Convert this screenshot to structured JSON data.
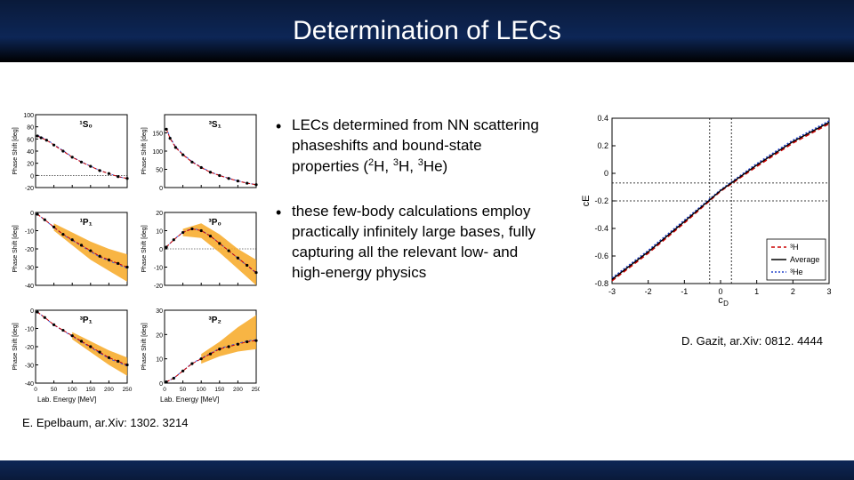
{
  "title": "Determination of LECs",
  "bullets": {
    "b1": {
      "pre": "LECs determined from NN scattering phaseshifts and bound-state properties (",
      "sup1": "2",
      "n1": "H, ",
      "sup2": "3",
      "n2": "H, ",
      "sup3": "3",
      "n3": "He)"
    },
    "b2": "these few-body calculations employ practically infinitely large bases, fully capturing all the relevant low- and high-energy physics"
  },
  "left_panels": {
    "ylabel": "Phase Shift [deg]",
    "xlabel": "Lab. Energy [MeV]",
    "xticks": [
      0,
      50,
      100,
      150,
      200,
      250
    ],
    "panels": [
      {
        "label": "¹S₀",
        "ylim": [
          -20,
          100
        ],
        "yticks": [
          -20,
          0,
          20,
          40,
          60,
          80,
          100
        ],
        "data": [
          [
            5,
            65
          ],
          [
            15,
            62
          ],
          [
            30,
            58
          ],
          [
            50,
            50
          ],
          [
            75,
            40
          ],
          [
            100,
            30
          ],
          [
            125,
            22
          ],
          [
            150,
            15
          ],
          [
            175,
            8
          ],
          [
            200,
            3
          ],
          [
            225,
            -2
          ],
          [
            250,
            -5
          ]
        ],
        "band": null
      },
      {
        "label": "³S₁",
        "ylim": [
          0,
          200
        ],
        "yticks": [
          0,
          50,
          100,
          150
        ],
        "data": [
          [
            5,
            160
          ],
          [
            15,
            135
          ],
          [
            30,
            110
          ],
          [
            50,
            90
          ],
          [
            75,
            70
          ],
          [
            100,
            55
          ],
          [
            125,
            42
          ],
          [
            150,
            33
          ],
          [
            175,
            25
          ],
          [
            200,
            18
          ],
          [
            225,
            12
          ],
          [
            250,
            8
          ]
        ],
        "band": null
      },
      {
        "label": "¹P₁",
        "ylim": [
          -40,
          0
        ],
        "yticks": [
          -40,
          -30,
          -20,
          -10,
          0
        ],
        "data": [
          [
            5,
            -1
          ],
          [
            25,
            -4
          ],
          [
            50,
            -8
          ],
          [
            75,
            -12
          ],
          [
            100,
            -15
          ],
          [
            125,
            -18
          ],
          [
            150,
            -21
          ],
          [
            175,
            -24
          ],
          [
            200,
            -26
          ],
          [
            225,
            -28
          ],
          [
            250,
            -30
          ]
        ],
        "band": [
          [
            50,
            -6,
            -10
          ],
          [
            100,
            -11,
            -18
          ],
          [
            150,
            -16,
            -26
          ],
          [
            200,
            -20,
            -32
          ],
          [
            250,
            -23,
            -38
          ]
        ]
      },
      {
        "label": "³P₀",
        "ylim": [
          -20,
          20
        ],
        "yticks": [
          -20,
          -10,
          0,
          10,
          20
        ],
        "data": [
          [
            5,
            1
          ],
          [
            25,
            5
          ],
          [
            50,
            9
          ],
          [
            75,
            11
          ],
          [
            100,
            10
          ],
          [
            125,
            7
          ],
          [
            150,
            3
          ],
          [
            175,
            -1
          ],
          [
            200,
            -5
          ],
          [
            225,
            -9
          ],
          [
            250,
            -13
          ]
        ],
        "band": [
          [
            50,
            7,
            11
          ],
          [
            100,
            6,
            14
          ],
          [
            150,
            -2,
            8
          ],
          [
            200,
            -11,
            0
          ],
          [
            250,
            -20,
            -6
          ]
        ]
      },
      {
        "label": "³P₁",
        "ylim": [
          -40,
          0
        ],
        "yticks": [
          -40,
          -30,
          -20,
          -10,
          0
        ],
        "data": [
          [
            5,
            -1
          ],
          [
            25,
            -4
          ],
          [
            50,
            -8
          ],
          [
            75,
            -11
          ],
          [
            100,
            -14
          ],
          [
            125,
            -17
          ],
          [
            150,
            -20
          ],
          [
            175,
            -23
          ],
          [
            200,
            -26
          ],
          [
            225,
            -28
          ],
          [
            250,
            -30
          ]
        ],
        "band": [
          [
            100,
            -12,
            -16
          ],
          [
            150,
            -17,
            -23
          ],
          [
            200,
            -22,
            -30
          ],
          [
            250,
            -26,
            -36
          ]
        ]
      },
      {
        "label": "³P₂",
        "ylim": [
          0,
          30
        ],
        "yticks": [
          0,
          10,
          20,
          30
        ],
        "data": [
          [
            5,
            0.5
          ],
          [
            25,
            2
          ],
          [
            50,
            5
          ],
          [
            75,
            8
          ],
          [
            100,
            10
          ],
          [
            125,
            12
          ],
          [
            150,
            14
          ],
          [
            175,
            15
          ],
          [
            200,
            16
          ],
          [
            225,
            17
          ],
          [
            250,
            17.5
          ]
        ],
        "band": [
          [
            100,
            8,
            12
          ],
          [
            150,
            11,
            17
          ],
          [
            200,
            13,
            23
          ],
          [
            250,
            14,
            28
          ]
        ]
      }
    ],
    "band_color": "#f7a823",
    "line_color": "#cc0000",
    "dash_color": "#3355dd",
    "point_color": "#000000",
    "axis_color": "#000000"
  },
  "right_chart": {
    "xlabel": "c_D",
    "ylabel": "c_E",
    "xlim": [
      -3,
      3
    ],
    "ylim": [
      -0.8,
      0.4
    ],
    "xticks": [
      -3,
      -2,
      -1,
      0,
      1,
      2,
      3
    ],
    "yticks": [
      -0.8,
      -0.6,
      -0.4,
      -0.2,
      0,
      0.2,
      0.4
    ],
    "line_red": [
      [
        -3,
        -0.78
      ],
      [
        -2,
        -0.58
      ],
      [
        -1,
        -0.36
      ],
      [
        0,
        -0.13
      ],
      [
        1,
        0.05
      ],
      [
        2,
        0.22
      ],
      [
        3,
        0.36
      ]
    ],
    "line_blue": [
      [
        -3,
        -0.76
      ],
      [
        -2,
        -0.56
      ],
      [
        -1,
        -0.34
      ],
      [
        0,
        -0.12
      ],
      [
        1,
        0.07
      ],
      [
        2,
        0.24
      ],
      [
        3,
        0.38
      ]
    ],
    "vdash_x": [
      -0.3,
      0.3
    ],
    "hdash_y": [
      -0.2,
      -0.07
    ],
    "legend": [
      {
        "label": "³H",
        "color": "#cc0000",
        "dash": "4,3"
      },
      {
        "label": "Average",
        "color": "#000000",
        "dash": ""
      },
      {
        "label": "³He",
        "color": "#2040cc",
        "dash": "2,2"
      }
    ],
    "grid_color": "#888888",
    "axis_color": "#000000"
  },
  "caption_left": "E. Epelbaum, ar.Xiv: 1302. 3214",
  "caption_right": "D. Gazit, ar.Xiv: 0812. 4444"
}
